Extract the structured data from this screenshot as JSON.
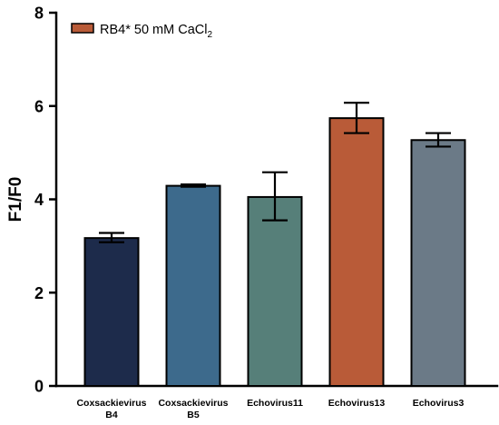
{
  "chart_data": {
    "type": "bar",
    "title": "",
    "xlabel": "",
    "ylabel": "F1/F0",
    "ylim": [
      0,
      8
    ],
    "yticks": [
      0,
      2,
      4,
      6,
      8
    ],
    "grid": false,
    "legend": {
      "placement": "top-left",
      "entries": [
        {
          "label": "RB4* 50 mM CaCl",
          "subscript": "2",
          "color": "#b95b38"
        }
      ]
    },
    "categories": [
      [
        "Coxsackievirus",
        "B4"
      ],
      [
        "Coxsackievirus",
        "B5"
      ],
      [
        "Echovirus11"
      ],
      [
        "Echovirus13"
      ],
      [
        "Echovirus3"
      ]
    ],
    "values": [
      3.17,
      4.29,
      4.05,
      5.74,
      5.27
    ],
    "error_low": [
      3.08,
      4.27,
      3.55,
      5.42,
      5.13
    ],
    "error_high": [
      3.28,
      4.32,
      4.58,
      6.07,
      5.42
    ],
    "colors": [
      "#1d2b4b",
      "#3d6a8c",
      "#567f79",
      "#b95b38",
      "#6b7a87"
    ]
  }
}
